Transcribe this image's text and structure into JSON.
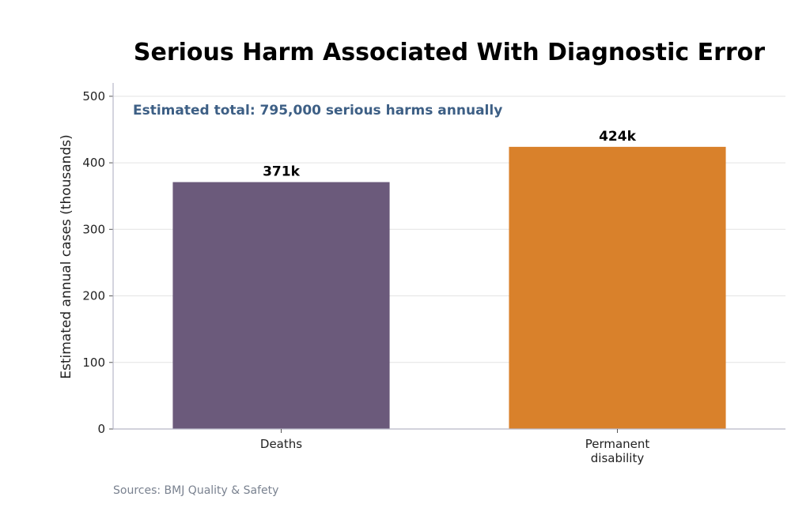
{
  "chart_data": {
    "type": "bar",
    "title": "Serious Harm Associated With Diagnostic Error",
    "annotation": "Estimated total: 795,000 serious harms annually",
    "xlabel": "",
    "ylabel": "Estimated annual cases (thousands)",
    "ylim": [
      0,
      520
    ],
    "yticks": [
      0,
      100,
      200,
      300,
      400,
      500
    ],
    "grid": true,
    "categories": [
      [
        "Deaths"
      ],
      [
        "Permanent",
        "disability"
      ]
    ],
    "values": [
      371,
      424
    ],
    "data_labels": [
      "371k",
      "424k"
    ],
    "colors": [
      "#6b5a7b",
      "#d9812b"
    ]
  },
  "annotation_color": "#3d5f85",
  "source": "Sources: BMJ Quality & Safety"
}
